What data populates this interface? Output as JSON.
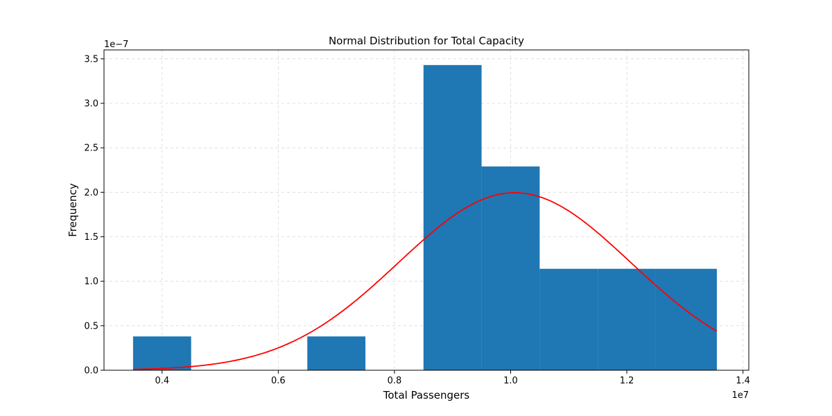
{
  "chart_data": {
    "type": "bar",
    "title": "Normal Distribution for Total Capacity",
    "xlabel": "Total Passengers",
    "ylabel": "Frequency",
    "x_offset_label": "1e7",
    "y_offset_label": "1e−7",
    "x_scale": 10000000,
    "y_scale": 1e-07,
    "xlim": [
      0.3,
      1.41
    ],
    "ylim": [
      0,
      3.6
    ],
    "x_ticks": [
      {
        "value": 0.4,
        "label": "0.4"
      },
      {
        "value": 0.6,
        "label": "0.6"
      },
      {
        "value": 0.8,
        "label": "0.8"
      },
      {
        "value": 1.0,
        "label": "1.0"
      },
      {
        "value": 1.2,
        "label": "1.2"
      },
      {
        "value": 1.4,
        "label": "1.4"
      }
    ],
    "y_ticks": [
      {
        "value": 0.0,
        "label": "0.0"
      },
      {
        "value": 0.5,
        "label": "0.5"
      },
      {
        "value": 1.0,
        "label": "1.0"
      },
      {
        "value": 1.5,
        "label": "1.5"
      },
      {
        "value": 2.0,
        "label": "2.0"
      },
      {
        "value": 2.5,
        "label": "2.5"
      },
      {
        "value": 3.0,
        "label": "3.0"
      },
      {
        "value": 3.5,
        "label": "3.5"
      }
    ],
    "grid": true,
    "bins": [
      {
        "x0": 0.35,
        "x1": 0.45,
        "value": 0.38
      },
      {
        "x0": 0.45,
        "x1": 0.55,
        "value": 0.0
      },
      {
        "x0": 0.55,
        "x1": 0.65,
        "value": 0.0
      },
      {
        "x0": 0.65,
        "x1": 0.75,
        "value": 0.38
      },
      {
        "x0": 0.75,
        "x1": 0.85,
        "value": 0.0
      },
      {
        "x0": 0.85,
        "x1": 0.95,
        "value": 3.43
      },
      {
        "x0": 0.95,
        "x1": 1.05,
        "value": 2.29
      },
      {
        "x0": 1.05,
        "x1": 1.15,
        "value": 1.14
      },
      {
        "x0": 1.15,
        "x1": 1.25,
        "value": 1.14
      },
      {
        "x0": 1.25,
        "x1": 1.355,
        "value": 1.14
      }
    ],
    "bar_color": "#1f77b4",
    "curve": {
      "type": "normal_pdf",
      "mean": 1.007,
      "std": 0.2,
      "x_start": 0.35,
      "x_end": 1.355,
      "color": "#ff0000"
    }
  }
}
